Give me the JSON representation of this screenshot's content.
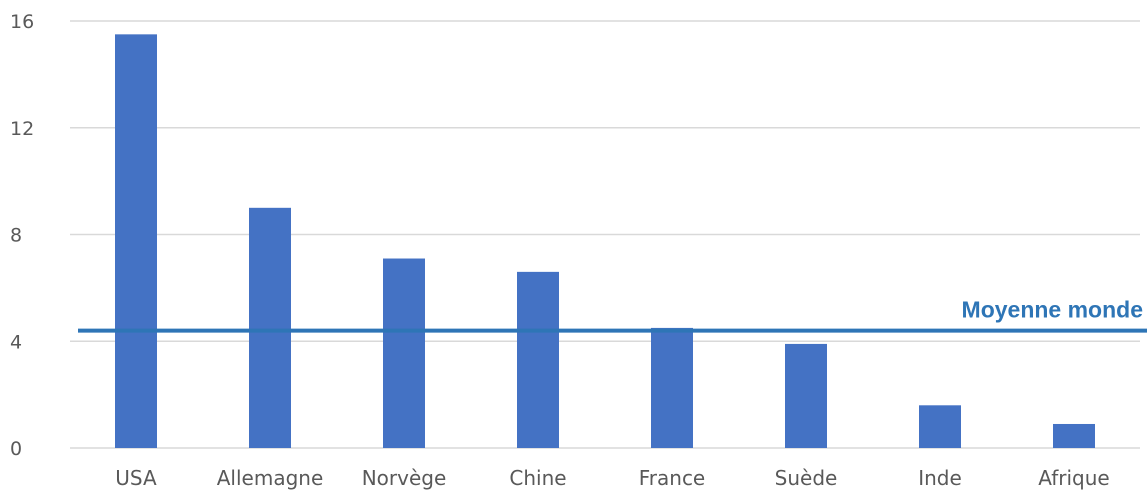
{
  "chart_data": {
    "type": "bar",
    "categories": [
      "USA",
      "Allemagne",
      "Norvège",
      "Chine",
      "France",
      "Suède",
      "Inde",
      "Afrique"
    ],
    "values": [
      15.5,
      9.0,
      7.1,
      6.6,
      4.5,
      3.9,
      1.6,
      0.9
    ],
    "ylim": [
      0,
      16
    ],
    "yticks": [
      0,
      4,
      8,
      12,
      16
    ],
    "grid": true,
    "reference_line": {
      "label": "Moyenne monde",
      "value": 4.4
    },
    "colors": {
      "bar": "#4472c4",
      "reference": "#2e75b6",
      "grid": "#d9d9d9"
    }
  }
}
